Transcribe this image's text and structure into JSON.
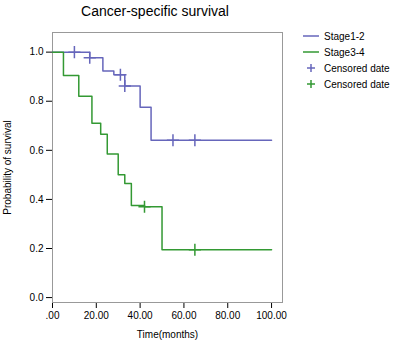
{
  "chart_data": {
    "type": "step",
    "title": "Cancer-specific survival",
    "xlabel": "Time(months)",
    "ylabel": "Probability of survival",
    "xlim": [
      0,
      105
    ],
    "ylim": [
      -0.02,
      1.08
    ],
    "xticks": [
      {
        "value": 0,
        "label": ".00"
      },
      {
        "value": 20,
        "label": "20.00"
      },
      {
        "value": 40,
        "label": "40.00"
      },
      {
        "value": 60,
        "label": "60.00"
      },
      {
        "value": 80,
        "label": "80.00"
      },
      {
        "value": 100,
        "label": "100.00"
      }
    ],
    "yticks": [
      {
        "value": 0,
        "label": "0.0"
      },
      0.2,
      0.4,
      0.6,
      0.8,
      {
        "value": 1,
        "label": "1.0"
      }
    ],
    "grid": false,
    "legend": "right",
    "series": [
      {
        "name": "Stage1-2",
        "type": "step",
        "color": "#6666bb",
        "x": [
          0,
          10,
          17,
          23,
          28,
          31,
          33,
          37,
          40,
          45,
          55,
          65,
          100
        ],
        "values": [
          1.0,
          1.0,
          0.977,
          0.923,
          0.908,
          0.908,
          0.862,
          0.862,
          0.775,
          0.641,
          0.641,
          0.641,
          0.641
        ]
      },
      {
        "name": "Stage3-4",
        "type": "step",
        "color": "#339933",
        "x": [
          0,
          5,
          12,
          18,
          22,
          25,
          30,
          33,
          36,
          42,
          50,
          65,
          100
        ],
        "values": [
          1.0,
          0.905,
          0.82,
          0.71,
          0.665,
          0.585,
          0.5,
          0.465,
          0.375,
          0.37,
          0.195,
          0.195,
          0.195
        ]
      },
      {
        "name": "Censored date",
        "type": "scatter",
        "marker": "+",
        "color": "#6666bb",
        "x": [
          10,
          17,
          31,
          33,
          55,
          65
        ],
        "values": [
          1.0,
          0.977,
          0.908,
          0.862,
          0.641,
          0.641
        ]
      },
      {
        "name": "Censored date",
        "type": "scatter",
        "marker": "+",
        "color": "#339933",
        "x": [
          42,
          65
        ],
        "values": [
          0.37,
          0.195
        ]
      }
    ]
  }
}
